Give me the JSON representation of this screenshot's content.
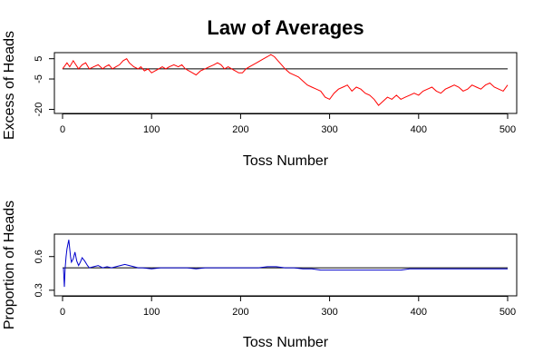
{
  "title": "Law of Averages",
  "chart_data": [
    {
      "type": "line",
      "xlabel": "Toss Number",
      "ylabel": "Excess of Heads",
      "xlim": [
        0,
        500
      ],
      "ylim": [
        -22,
        8
      ],
      "xticks": [
        0,
        100,
        200,
        300,
        400,
        500
      ],
      "yticks": [
        5,
        -5,
        -20
      ],
      "ytick_labels": [
        "5",
        "-5",
        "-20"
      ],
      "reference_line": 0,
      "line_color": "#ff0000",
      "reference_color": "#000000",
      "grid": false,
      "legend": "none",
      "x": [
        0,
        5,
        8,
        12,
        15,
        18,
        22,
        26,
        30,
        35,
        40,
        45,
        48,
        52,
        56,
        60,
        64,
        68,
        72,
        75,
        80,
        85,
        88,
        92,
        96,
        100,
        104,
        108,
        112,
        116,
        120,
        125,
        130,
        134,
        138,
        142,
        146,
        150,
        155,
        160,
        165,
        170,
        174,
        178,
        182,
        186,
        190,
        194,
        198,
        202,
        206,
        210,
        214,
        218,
        222,
        226,
        230,
        234,
        238,
        242,
        246,
        250,
        255,
        260,
        265,
        270,
        275,
        280,
        285,
        290,
        295,
        300,
        305,
        310,
        315,
        320,
        325,
        330,
        335,
        340,
        345,
        350,
        355,
        360,
        365,
        370,
        375,
        380,
        385,
        390,
        395,
        400,
        405,
        410,
        415,
        420,
        425,
        430,
        435,
        440,
        445,
        450,
        455,
        460,
        465,
        470,
        475,
        480,
        485,
        490,
        495,
        500
      ],
      "y": [
        0,
        3,
        1,
        4,
        2,
        0,
        2,
        3,
        0,
        1,
        2,
        0,
        1,
        2,
        0,
        1,
        2,
        4,
        5,
        3,
        1,
        0,
        1,
        -1,
        0,
        -2,
        -1,
        0,
        1,
        0,
        1,
        2,
        1,
        2,
        0,
        -1,
        -2,
        -3,
        -1,
        0,
        1,
        2,
        3,
        2,
        0,
        1,
        0,
        -1,
        -2,
        -2,
        0,
        1,
        2,
        3,
        4,
        5,
        6,
        7,
        6,
        4,
        2,
        0,
        -2,
        -3,
        -4,
        -6,
        -8,
        -9,
        -10,
        -11,
        -14,
        -15,
        -12,
        -10,
        -9,
        -8,
        -11,
        -9,
        -10,
        -12,
        -13,
        -15,
        -18,
        -16,
        -14,
        -15,
        -13,
        -15,
        -14,
        -13,
        -12,
        -13,
        -11,
        -10,
        -9,
        -11,
        -12,
        -10,
        -9,
        -8,
        -9,
        -11,
        -10,
        -8,
        -9,
        -10,
        -8,
        -7,
        -9,
        -10,
        -11,
        -8
      ]
    },
    {
      "type": "line",
      "xlabel": "Toss Number",
      "ylabel": "Proportion of Heads",
      "xlim": [
        0,
        500
      ],
      "ylim": [
        0.25,
        0.8
      ],
      "xticks": [
        0,
        100,
        200,
        300,
        400,
        500
      ],
      "yticks": [
        0.3,
        0.6
      ],
      "ytick_labels": [
        "0.3",
        "0.6"
      ],
      "reference_line": 0.5,
      "line_color": "#0000cc",
      "reference_color": "#000000",
      "grid": false,
      "legend": "none",
      "x": [
        1,
        2,
        3,
        4,
        5,
        6,
        7,
        8,
        9,
        10,
        12,
        14,
        16,
        18,
        20,
        22,
        25,
        28,
        30,
        35,
        40,
        45,
        50,
        55,
        60,
        65,
        70,
        75,
        80,
        85,
        90,
        100,
        110,
        120,
        130,
        140,
        150,
        160,
        170,
        180,
        190,
        200,
        210,
        220,
        230,
        240,
        250,
        260,
        270,
        280,
        290,
        300,
        310,
        320,
        330,
        340,
        350,
        360,
        370,
        380,
        390,
        400,
        410,
        420,
        430,
        440,
        450,
        460,
        470,
        480,
        490,
        500
      ],
      "y": [
        0.5,
        0.33,
        0.5,
        0.6,
        0.67,
        0.71,
        0.75,
        0.67,
        0.6,
        0.55,
        0.58,
        0.64,
        0.56,
        0.52,
        0.55,
        0.59,
        0.56,
        0.52,
        0.5,
        0.51,
        0.52,
        0.5,
        0.51,
        0.5,
        0.51,
        0.52,
        0.53,
        0.52,
        0.51,
        0.5,
        0.5,
        0.49,
        0.5,
        0.5,
        0.5,
        0.5,
        0.49,
        0.5,
        0.5,
        0.5,
        0.5,
        0.5,
        0.5,
        0.5,
        0.51,
        0.51,
        0.5,
        0.5,
        0.49,
        0.49,
        0.48,
        0.48,
        0.48,
        0.48,
        0.48,
        0.48,
        0.48,
        0.48,
        0.48,
        0.48,
        0.49,
        0.49,
        0.49,
        0.49,
        0.49,
        0.49,
        0.49,
        0.49,
        0.49,
        0.49,
        0.49,
        0.49
      ]
    }
  ]
}
